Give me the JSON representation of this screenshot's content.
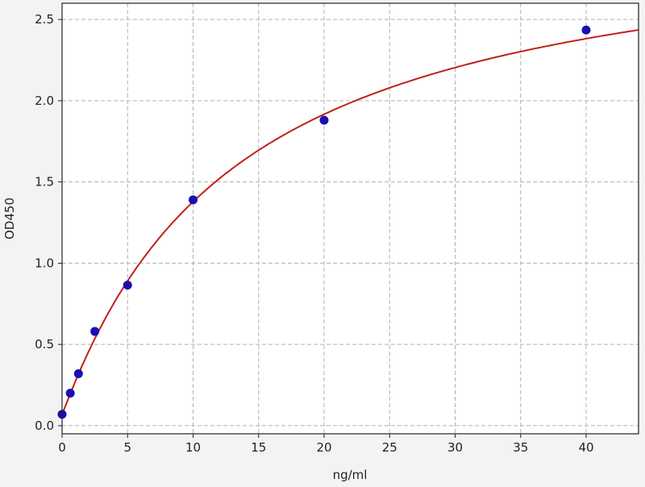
{
  "chart_data": {
    "type": "scatter",
    "title": "",
    "xlabel": "ng/ml",
    "ylabel": "OD450",
    "xlim": [
      0,
      44
    ],
    "ylim": [
      -0.05,
      2.6
    ],
    "xticks": [
      0,
      5,
      10,
      15,
      20,
      25,
      30,
      35,
      40
    ],
    "xtick_labels": [
      "0",
      "5",
      "10",
      "15",
      "20",
      "25",
      "30",
      "35",
      "40"
    ],
    "yticks": [
      0.0,
      0.5,
      1.0,
      1.5,
      2.0,
      2.5
    ],
    "ytick_labels": [
      "0.0",
      "0.5",
      "1.0",
      "1.5",
      "2.0",
      "2.5"
    ],
    "grid": true,
    "points": {
      "x": [
        0,
        0.625,
        1.25,
        2.5,
        5,
        10,
        20,
        40
      ],
      "y": [
        0.07,
        0.2,
        0.32,
        0.58,
        0.865,
        1.39,
        1.88,
        2.435
      ],
      "color": "#1a0fb0"
    },
    "fit_curve": {
      "color": "#c0201a"
    }
  }
}
